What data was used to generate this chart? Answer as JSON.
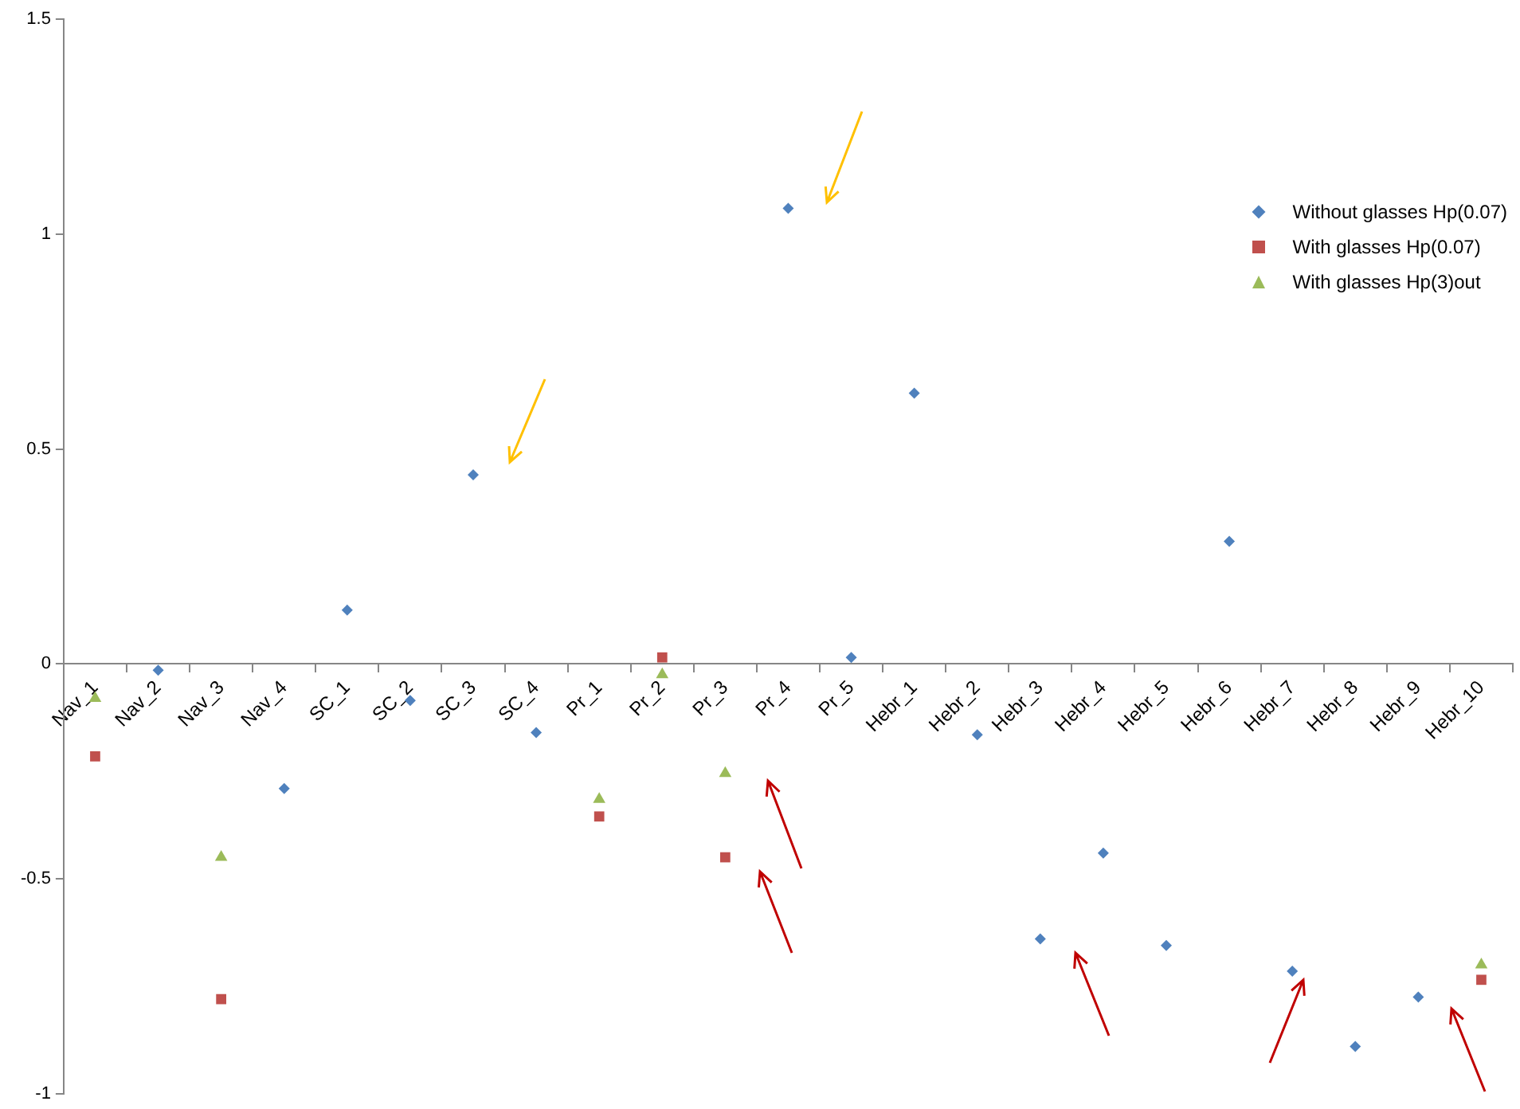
{
  "chart_data": {
    "type": "scatter",
    "categories": [
      "Nav_1",
      "Nav_2",
      "Nav_3",
      "Nav_4",
      "SC_1",
      "SC_2",
      "SC_3",
      "SC_4",
      "Pr_1",
      "Pr_2",
      "Pr_3",
      "Pr_4",
      "Pr_5",
      "Hebr_1",
      "Hebr_2",
      "Hebr_3",
      "Hebr_4",
      "Hebr_5",
      "Hebr_6",
      "Hebr_7",
      "Hebr_8",
      "Hebr_9",
      "Hebr_10"
    ],
    "series": [
      {
        "name": "Without glasses Hp(0.07)",
        "color": "#4f81bd",
        "marker": "diamond",
        "values": [
          null,
          -0.015,
          null,
          -0.29,
          0.125,
          -0.085,
          0.44,
          -0.16,
          null,
          null,
          null,
          1.06,
          0.015,
          0.63,
          -0.165,
          -0.64,
          -0.44,
          -0.655,
          0.285,
          -0.715,
          -0.89,
          -0.775,
          null
        ]
      },
      {
        "name": "With glasses Hp(0.07)",
        "color": "#c0504d",
        "marker": "square",
        "values": [
          -0.215,
          null,
          -0.78,
          null,
          null,
          null,
          null,
          null,
          -0.355,
          0.015,
          -0.45,
          null,
          null,
          null,
          null,
          null,
          null,
          null,
          null,
          null,
          null,
          null,
          -0.735
        ]
      },
      {
        "name": "With glasses Hp(3)out",
        "color": "#9bbb59",
        "marker": "triangle",
        "values": [
          -0.08,
          null,
          -0.45,
          null,
          null,
          null,
          null,
          null,
          -0.315,
          -0.025,
          -0.255,
          null,
          null,
          null,
          null,
          null,
          null,
          null,
          null,
          null,
          null,
          null,
          -0.7
        ]
      }
    ],
    "ylim": [
      -1,
      1.5
    ],
    "yticks": [
      -1,
      -0.5,
      0,
      0.5,
      1,
      1.5
    ],
    "grid": false,
    "legend": "top right"
  }
}
